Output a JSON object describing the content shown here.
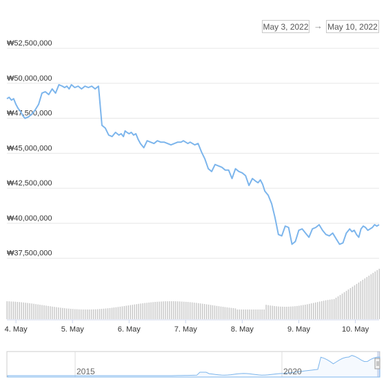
{
  "range_selector": {
    "from": "May 3, 2022",
    "arrow": "→",
    "to": "May 10, 2022"
  },
  "chart_data": {
    "type": "line",
    "title": "",
    "xlabel": "",
    "ylabel": "",
    "y_tick_labels": [
      "₩52,500,000",
      "₩50,000,000",
      "₩47,500,000",
      "₩45,000,000",
      "₩42,500,000",
      "₩40,000,000",
      "₩37,500,000"
    ],
    "y_ticks": [
      52500000,
      50000000,
      47500000,
      45000000,
      42500000,
      40000000,
      37500000
    ],
    "ylim": [
      36500000,
      53000000
    ],
    "x_tick_labels": [
      "4. May",
      "5. May",
      "6. May",
      "7. May",
      "8. May",
      "9. May",
      "10. May"
    ],
    "x_ticks_day": [
      1,
      2,
      3,
      4,
      5,
      6,
      7
    ],
    "xlim_day": [
      0.84,
      7.42
    ],
    "grid": true,
    "line_color": "#7cb5ec",
    "series": [
      {
        "x_day": [
          0.84,
          0.88,
          0.92,
          0.96,
          1.0,
          1.04,
          1.08,
          1.12,
          1.16,
          1.22,
          1.28,
          1.34,
          1.4,
          1.46,
          1.52,
          1.58,
          1.64,
          1.7,
          1.76,
          1.82,
          1.86,
          1.9,
          1.94,
          1.98,
          2.04,
          2.1,
          2.16,
          2.22,
          2.28,
          2.34,
          2.4,
          2.46,
          2.52,
          2.58,
          2.64,
          2.7,
          2.76,
          2.82,
          2.86,
          2.9,
          2.93,
          2.96,
          3.0,
          3.04,
          3.08,
          3.12,
          3.16,
          3.2,
          3.26,
          3.32,
          3.38,
          3.44,
          3.5,
          3.56,
          3.62,
          3.68,
          3.74,
          3.8,
          3.86,
          3.92,
          3.96,
          4.0,
          4.04,
          4.08,
          4.12,
          4.16,
          4.22,
          4.28,
          4.34,
          4.4,
          4.46,
          4.52,
          4.58,
          4.64,
          4.7,
          4.76,
          4.82,
          4.88,
          4.94,
          5.0,
          5.06,
          5.12,
          5.18,
          5.24,
          5.28,
          5.32,
          5.36,
          5.4,
          5.46,
          5.52,
          5.58,
          5.64,
          5.7,
          5.76,
          5.82,
          5.88,
          5.94,
          6.0,
          6.06,
          6.12,
          6.18,
          6.24,
          6.3,
          6.36,
          6.42,
          6.48,
          6.54,
          6.6,
          6.66,
          6.72,
          6.78,
          6.84,
          6.9,
          6.94,
          6.98,
          7.02,
          7.06,
          7.1,
          7.14,
          7.18,
          7.22,
          7.26,
          7.3,
          7.34,
          7.38,
          7.42
        ],
        "values": [
          48900000,
          49000000,
          48800000,
          48900000,
          48500000,
          48200000,
          48000000,
          47700000,
          47500000,
          47600000,
          47800000,
          48100000,
          48500000,
          49300000,
          49400000,
          49200000,
          49600000,
          49300000,
          49900000,
          49800000,
          49700000,
          49800000,
          49600000,
          49900000,
          49700000,
          49800000,
          49600000,
          49800000,
          49700000,
          49800000,
          49600000,
          49800000,
          47000000,
          46800000,
          46300000,
          46200000,
          46500000,
          46300000,
          46400000,
          46200000,
          46600000,
          46500000,
          46400000,
          46500000,
          46300000,
          46400000,
          46000000,
          45700000,
          45400000,
          45900000,
          45800000,
          45700000,
          45900000,
          45800000,
          45800000,
          45700000,
          45600000,
          45700000,
          45800000,
          45800000,
          45900000,
          45800000,
          45700000,
          45800000,
          45700000,
          45600000,
          45700000,
          45100000,
          44600000,
          43900000,
          43700000,
          44200000,
          44100000,
          44000000,
          43800000,
          43800000,
          43200000,
          43900000,
          43700000,
          43600000,
          43400000,
          42700000,
          43200000,
          43000000,
          42900000,
          43100000,
          42800000,
          42300000,
          42000000,
          41400000,
          40400000,
          39200000,
          39100000,
          39800000,
          39700000,
          38500000,
          38700000,
          39500000,
          39600000,
          39300000,
          39000000,
          39600000,
          39700000,
          39900000,
          39500000,
          39200000,
          39100000,
          39300000,
          38900000,
          38500000,
          38600000,
          39300000,
          39600000,
          39400000,
          39500000,
          39200000,
          39000000,
          39600000,
          39800000,
          39700000,
          39500000,
          39600000,
          39700000,
          39900000,
          39800000,
          39900000
        ]
      }
    ],
    "volume_bar_color": "#c8c8c8",
    "navigator": {
      "tick_labels": [
        "2015",
        "2020"
      ],
      "line_color": "#7cb5ec"
    }
  }
}
